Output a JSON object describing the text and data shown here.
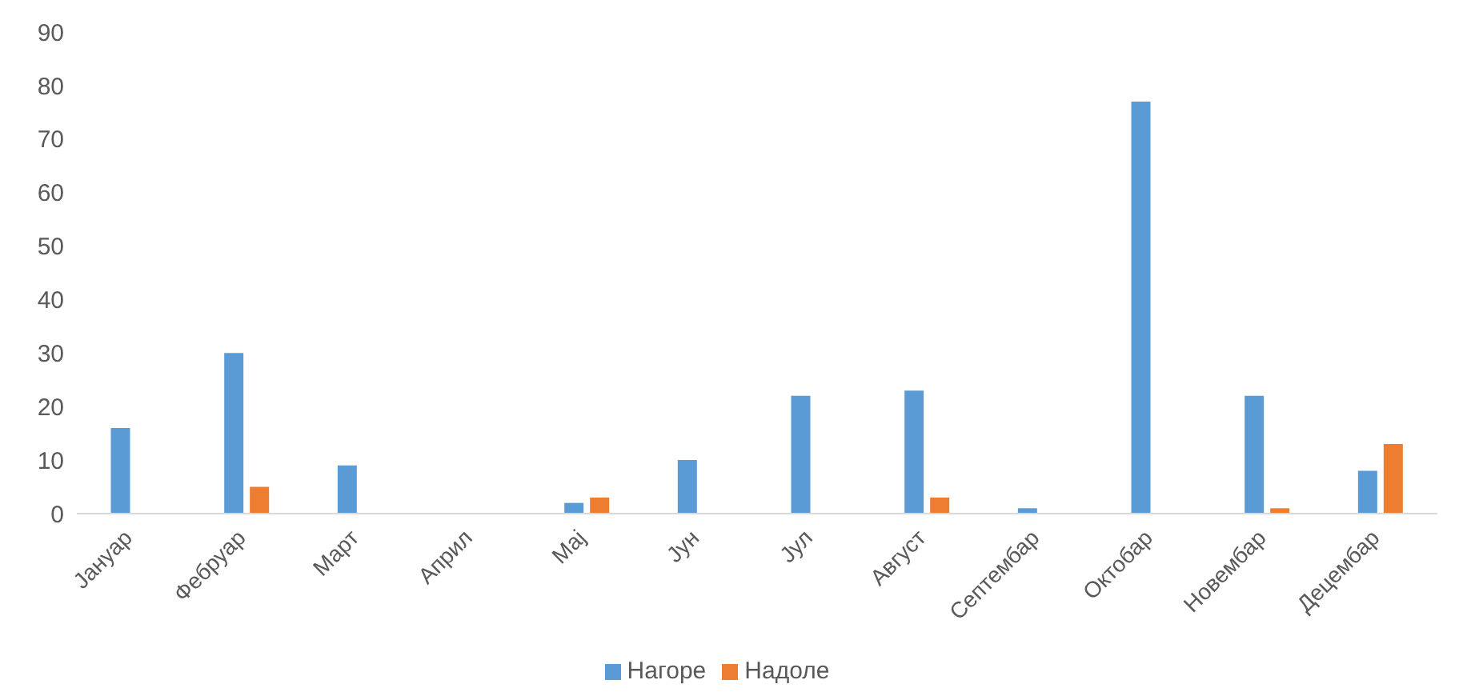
{
  "chart_data": {
    "type": "bar",
    "categories": [
      "Јануар",
      "Фебруар",
      "Март",
      "Април",
      "Мај",
      "Јун",
      "Јул",
      "Август",
      "Септембар",
      "Октобар",
      "Новембар",
      "Децембар"
    ],
    "series": [
      {
        "name": "Нагоре",
        "color": "#5b9bd5",
        "values": [
          16,
          30,
          9,
          0,
          2,
          10,
          22,
          23,
          1,
          77,
          22,
          8
        ]
      },
      {
        "name": "Надоле",
        "color": "#ed7d31",
        "values": [
          0,
          5,
          0,
          0,
          3,
          0,
          0,
          3,
          0,
          0,
          1,
          13
        ]
      }
    ],
    "ylim": [
      0,
      90
    ],
    "yticks": [
      0,
      10,
      20,
      30,
      40,
      50,
      60,
      70,
      80,
      90
    ],
    "legend": "bottom"
  }
}
